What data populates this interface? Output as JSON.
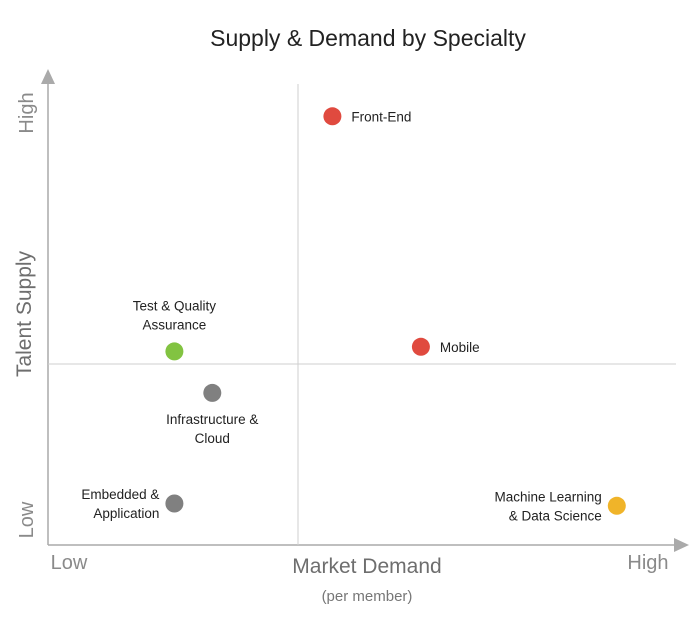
{
  "chart_data": {
    "type": "scatter",
    "title": "Supply & Demand by Specialty",
    "xlabel": "Market Demand",
    "xlabel_sub": "(per member)",
    "ylabel": "Talent Supply",
    "x_ticks": {
      "low": "Low",
      "high": "High"
    },
    "y_ticks": {
      "low": "Low",
      "high": "High"
    },
    "xlim": [
      0,
      10
    ],
    "ylim": [
      0,
      10
    ],
    "colors": {
      "red": "#e04a3f",
      "green": "#82c341",
      "gray": "#808080",
      "yellow": "#f0b429"
    },
    "points": [
      {
        "name": "Front-End",
        "label_lines": [
          "Front-End"
        ],
        "x": 4.5,
        "y": 9.3,
        "color": "#e04a3f",
        "label_pos": "right"
      },
      {
        "name": "Mobile",
        "label_lines": [
          "Mobile"
        ],
        "x": 5.9,
        "y": 4.3,
        "color": "#e04a3f",
        "label_pos": "right"
      },
      {
        "name": "Test & Quality Assurance",
        "label_lines": [
          "Test & Quality",
          "Assurance"
        ],
        "x": 2.0,
        "y": 4.2,
        "color": "#82c341",
        "label_pos": "above"
      },
      {
        "name": "Infrastructure & Cloud",
        "label_lines": [
          "Infrastructure &",
          "Cloud"
        ],
        "x": 2.6,
        "y": 3.3,
        "color": "#808080",
        "label_pos": "below"
      },
      {
        "name": "Embedded & Application",
        "label_lines": [
          "Embedded &",
          "Application"
        ],
        "x": 2.0,
        "y": 0.9,
        "color": "#808080",
        "label_pos": "left"
      },
      {
        "name": "Machine Learning & Data Science",
        "label_lines": [
          "Machine Learning",
          "& Data Science"
        ],
        "x": 9.0,
        "y": 0.85,
        "color": "#f0b429",
        "label_pos": "left"
      }
    ]
  }
}
